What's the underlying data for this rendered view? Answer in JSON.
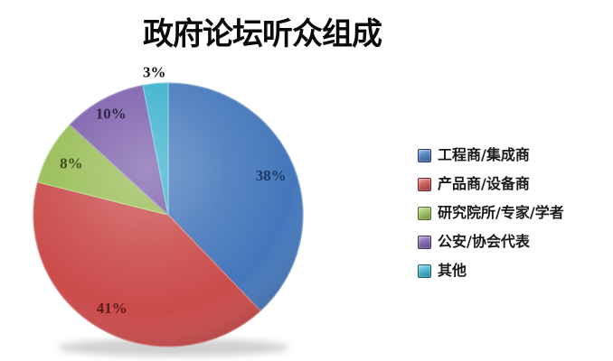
{
  "page": {
    "background": "#ffffff"
  },
  "title": "政府论坛听众组成",
  "chart_data": {
    "type": "pie",
    "title": "政府论坛听众组成",
    "start_angle_deg": 0,
    "direction": "clockwise",
    "legend_position": "right",
    "total": 100,
    "slices": [
      {
        "label": "工程商/集成商",
        "value": 38,
        "pct_label": "38%",
        "color": "#4477BB",
        "label_color": "#1E3A66",
        "label_pos": "inside",
        "label_radius": 0.82
      },
      {
        "label": "产品商/设备商",
        "value": 41,
        "pct_label": "41%",
        "color": "#CA4B4A",
        "label_color": "#5E1B1A",
        "label_pos": "inside",
        "label_radius": 0.82
      },
      {
        "label": "研究院所/专家/学者",
        "value": 8,
        "pct_label": "8%",
        "color": "#97BC52",
        "label_color": "#3D5120",
        "label_pos": "inside",
        "label_radius": 0.82
      },
      {
        "label": "公安/协会代表",
        "value": 10,
        "pct_label": "10%",
        "color": "#7A5DAA",
        "label_color": "#32264A",
        "label_pos": "inside",
        "label_radius": 0.88
      },
      {
        "label": "其他",
        "value": 3,
        "pct_label": "3%",
        "color": "#38AFCC",
        "label_color": "#111111",
        "label_pos": "outside",
        "label_radius": 1.09
      }
    ]
  }
}
